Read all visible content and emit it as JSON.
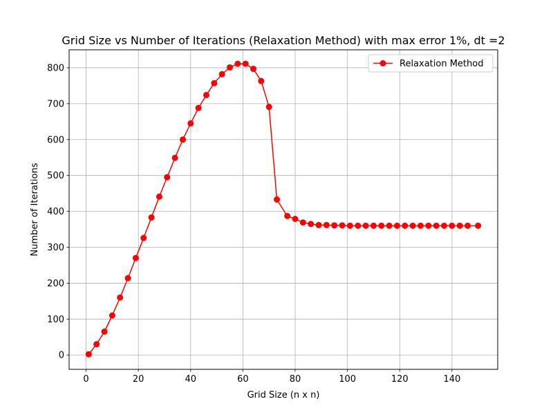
{
  "chart_data": {
    "type": "line",
    "title": "Grid Size vs Number of Iterations (Relaxation Method) with max error 1%, dt =2",
    "xlabel": "Grid Size (n x n)",
    "ylabel": "Number of Iterations",
    "xlim": [
      -6.5,
      157.5
    ],
    "ylim": [
      -40,
      850
    ],
    "xticks": [
      0,
      20,
      40,
      60,
      80,
      100,
      120,
      140
    ],
    "yticks": [
      0,
      100,
      200,
      300,
      400,
      500,
      600,
      700,
      800
    ],
    "xtick_labels": [
      "0",
      "20",
      "40",
      "60",
      "80",
      "100",
      "120",
      "140"
    ],
    "ytick_labels": [
      "0",
      "100",
      "200",
      "300",
      "400",
      "500",
      "600",
      "700",
      "800"
    ],
    "grid": true,
    "legend_position": "top-right",
    "series": [
      {
        "name": "Relaxation Method",
        "color": "#ff0000",
        "marker": "circle",
        "x": [
          1,
          4,
          7,
          10,
          13,
          16,
          19,
          22,
          25,
          28,
          31,
          34,
          37,
          40,
          43,
          46,
          49,
          52,
          55,
          58,
          61,
          64,
          67,
          70,
          73,
          77,
          80,
          83,
          86,
          89,
          92,
          95,
          98,
          101,
          104,
          107,
          110,
          113,
          116,
          119,
          122,
          125,
          128,
          131,
          134,
          137,
          140,
          143,
          146,
          150
        ],
        "y": [
          2,
          30,
          65,
          110,
          160,
          214,
          270,
          326,
          383,
          441,
          495,
          549,
          600,
          645,
          688,
          724,
          757,
          782,
          801,
          811,
          811,
          797,
          763,
          691,
          433,
          387,
          379,
          369,
          365,
          362,
          362,
          361,
          361,
          360,
          360,
          360,
          360,
          360,
          360,
          360,
          360,
          360,
          360,
          360,
          360,
          360,
          360,
          360,
          360,
          360
        ]
      }
    ]
  }
}
